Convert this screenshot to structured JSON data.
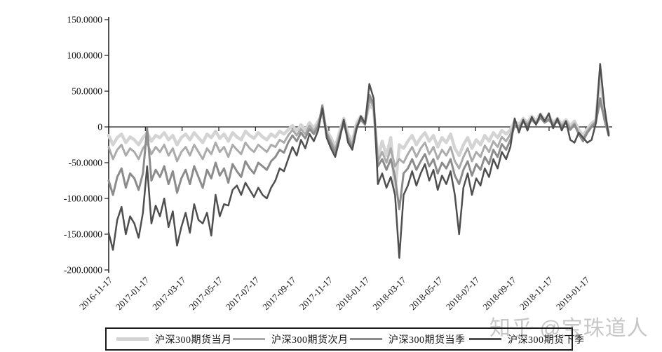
{
  "watermark": "知乎 @宝珠道人",
  "chart_data": {
    "type": "line",
    "title": "",
    "xlabel": "",
    "ylabel": "",
    "grid": false,
    "legend_position": "bottom",
    "ylim": [
      -200,
      150
    ],
    "y_tick_values": [
      150,
      100,
      50,
      0,
      -50,
      -100,
      -150,
      -200
    ],
    "y_tick_labels": [
      "150.0000",
      "100.0000",
      "50.0000",
      "0",
      "-50.0000",
      "-100.0000",
      "-150.0000",
      "-200.0000"
    ],
    "x_tick_labels": [
      "2016-11-17",
      "2017-01-17",
      "2017-03-17",
      "2017-05-17",
      "2017-07-17",
      "2017-09-17",
      "2017-11-17",
      "2018-01-17",
      "2018-03-17",
      "2018-05-17",
      "2018-07-17",
      "2018-09-17",
      "2018-11-17",
      "2019-01-17"
    ],
    "x_tick_months": [
      0,
      2,
      4,
      6,
      8,
      10,
      12,
      14,
      16,
      18,
      20,
      22,
      24,
      26
    ],
    "x_total_months": 27.25,
    "n_points": 118,
    "axis_color": "#1c1c1c",
    "series": [
      {
        "name": "沪深300期货当月",
        "color": "#d4d4d4",
        "line_width": 4.5,
        "values": [
          -12,
          -25,
          -15,
          -10,
          -22,
          -14,
          -18,
          -25,
          -15,
          -8,
          -20,
          -12,
          -15,
          -8,
          -18,
          -12,
          -25,
          -15,
          -10,
          -18,
          -8,
          -15,
          -22,
          -10,
          -15,
          -6,
          -16,
          -10,
          -20,
          -8,
          -14,
          -18,
          -6,
          -12,
          -16,
          -8,
          -14,
          -18,
          -10,
          -14,
          -6,
          -10,
          -4,
          2,
          -6,
          3,
          -4,
          6,
          -2,
          8,
          18,
          -5,
          -15,
          -28,
          -8,
          12,
          -10,
          -20,
          5,
          15,
          8,
          30,
          25,
          -45,
          -20,
          -40,
          -15,
          -90,
          -25,
          -30,
          -20,
          -12,
          -25,
          -15,
          -8,
          -20,
          -12,
          -28,
          -15,
          -22,
          -10,
          -30,
          -40,
          -25,
          -15,
          -30,
          -18,
          -25,
          -12,
          -20,
          -8,
          -15,
          -5,
          -10,
          -4,
          8,
          3,
          12,
          6,
          15,
          8,
          18,
          10,
          15,
          6,
          12,
          4,
          10,
          2,
          8,
          -4,
          -12,
          -3,
          5,
          10,
          75,
          15,
          -8
        ]
      },
      {
        "name": "沪深300期货次月",
        "color": "#ababab",
        "line_width": 3,
        "values": [
          -28,
          -45,
          -32,
          -25,
          -40,
          -30,
          -35,
          -45,
          -30,
          -22,
          -38,
          -28,
          -35,
          -25,
          -40,
          -30,
          -48,
          -35,
          -28,
          -40,
          -25,
          -35,
          -45,
          -30,
          -38,
          -22,
          -35,
          -28,
          -42,
          -25,
          -32,
          -38,
          -22,
          -30,
          -35,
          -25,
          -30,
          -35,
          -25,
          -28,
          -18,
          -22,
          -12,
          -4,
          -12,
          -3,
          -10,
          2,
          -6,
          4,
          24,
          -8,
          -20,
          -32,
          -12,
          8,
          -14,
          -25,
          2,
          12,
          5,
          38,
          28,
          -48,
          -35,
          -50,
          -30,
          -55,
          -45,
          -50,
          -38,
          -28,
          -42,
          -30,
          -22,
          -38,
          -28,
          -45,
          -32,
          -40,
          -28,
          -48,
          -58,
          -42,
          -30,
          -48,
          -35,
          -42,
          -26,
          -35,
          -20,
          -28,
          -14,
          -20,
          -10,
          5,
          0,
          9,
          4,
          12,
          6,
          15,
          8,
          12,
          4,
          10,
          2,
          8,
          -2,
          5,
          -8,
          -16,
          -6,
          2,
          8,
          35,
          12,
          -10
        ]
      },
      {
        "name": "沪深300期货当季",
        "color": "#8c8c8c",
        "line_width": 3,
        "values": [
          -75,
          -95,
          -70,
          -58,
          -85,
          -65,
          -72,
          -88,
          -65,
          -2,
          -75,
          -60,
          -70,
          -55,
          -80,
          -62,
          -92,
          -72,
          -60,
          -80,
          -55,
          -70,
          -85,
          -60,
          -72,
          -50,
          -68,
          -58,
          -78,
          -52,
          -62,
          -70,
          -48,
          -58,
          -65,
          -50,
          -55,
          -60,
          -48,
          -42,
          -32,
          -36,
          -22,
          -12,
          -20,
          -8,
          -16,
          -3,
          -10,
          0,
          30,
          -10,
          -24,
          -36,
          -15,
          6,
          -18,
          -28,
          0,
          10,
          3,
          45,
          32,
          -55,
          -45,
          -60,
          -45,
          -70,
          -115,
          -65,
          -58,
          -45,
          -60,
          -48,
          -38,
          -55,
          -45,
          -65,
          -50,
          -58,
          -45,
          -68,
          -80,
          -60,
          -48,
          -68,
          -52,
          -60,
          -42,
          -52,
          -32,
          -42,
          -24,
          -32,
          -18,
          2,
          -3,
          7,
          2,
          10,
          4,
          13,
          6,
          10,
          2,
          8,
          0,
          6,
          -4,
          3,
          -10,
          -20,
          -8,
          0,
          6,
          40,
          10,
          -12
        ]
      },
      {
        "name": "沪深300期货下季",
        "color": "#4f4f4f",
        "line_width": 2.5,
        "values": [
          -148,
          -172,
          -130,
          -112,
          -150,
          -125,
          -135,
          -155,
          -120,
          -55,
          -135,
          -110,
          -125,
          -100,
          -140,
          -118,
          -166,
          -140,
          -120,
          -148,
          -108,
          -130,
          -135,
          -120,
          -152,
          -95,
          -125,
          -108,
          -110,
          -88,
          -82,
          -95,
          -78,
          -88,
          -98,
          -85,
          -95,
          -100,
          -85,
          -75,
          -58,
          -62,
          -45,
          -28,
          -40,
          -18,
          -30,
          -10,
          -20,
          -5,
          26,
          -15,
          -30,
          -42,
          -18,
          10,
          -22,
          -32,
          -3,
          15,
          5,
          60,
          40,
          -80,
          -65,
          -85,
          -70,
          -95,
          -183,
          -95,
          -82,
          -62,
          -82,
          -65,
          -52,
          -75,
          -60,
          -88,
          -68,
          -80,
          -62,
          -95,
          -150,
          -85,
          -65,
          -95,
          -72,
          -82,
          -58,
          -70,
          -45,
          -58,
          -35,
          -45,
          -28,
          12,
          -8,
          10,
          -5,
          14,
          3,
          18,
          8,
          19,
          -2,
          12,
          -5,
          8,
          -18,
          -22,
          -8,
          -15,
          -22,
          -18,
          5,
          88,
          28,
          -12
        ]
      }
    ]
  }
}
